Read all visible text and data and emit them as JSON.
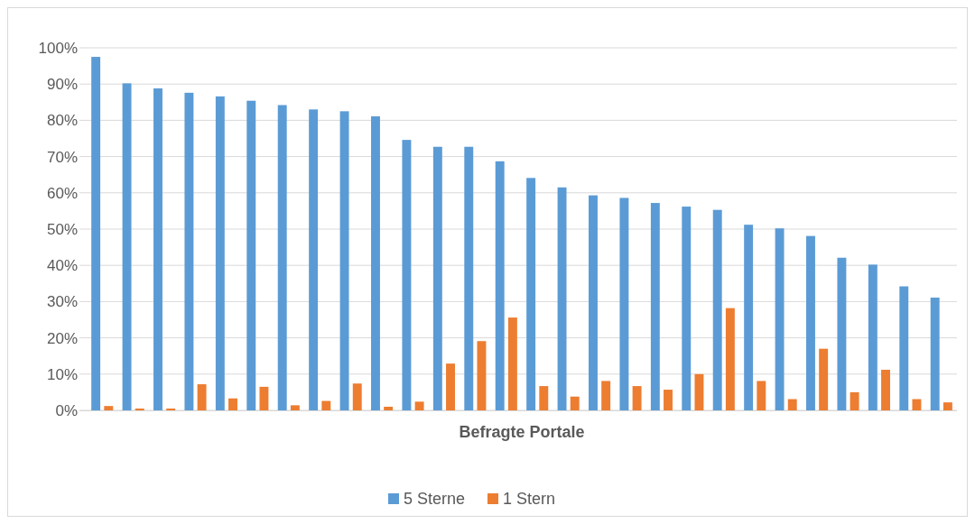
{
  "chart_data": {
    "type": "bar",
    "xlabel": "Befragte Portale",
    "categories": [
      null,
      null,
      null,
      null,
      null,
      null,
      null,
      null,
      null,
      null,
      null,
      null,
      null,
      null,
      null,
      null,
      null,
      null,
      null,
      null,
      null,
      null,
      null,
      null,
      null,
      null,
      null,
      null
    ],
    "series": [
      {
        "name": "5 Sterne",
        "color": "#5b9bd5",
        "values": [
          97.5,
          90.2,
          88.8,
          87.6,
          86.6,
          85.4,
          84.2,
          83,
          82.5,
          81.1,
          74.6,
          72.7,
          72.7,
          68.7,
          64.1,
          61.5,
          59.3,
          58.6,
          57.2,
          56.2,
          55.3,
          51.2,
          50.2,
          48.1,
          42.1,
          40.2,
          34.2,
          31.1
        ]
      },
      {
        "name": "1 Stern",
        "color": "#ed7d31",
        "values": [
          1.2,
          0.5,
          0.5,
          7.2,
          3.3,
          6.5,
          1.4,
          2.6,
          7.4,
          1,
          2.4,
          12.9,
          19.1,
          25.6,
          6.7,
          3.8,
          8.1,
          6.7,
          5.7,
          10,
          28.2,
          8.1,
          3.1,
          17,
          5,
          11.2,
          3.1,
          2.2
        ]
      }
    ],
    "ylim": [
      0,
      100
    ],
    "yticks": [
      {
        "value": 0,
        "label": "0%"
      },
      {
        "value": 10,
        "label": "10%"
      },
      {
        "value": 20,
        "label": "20%"
      },
      {
        "value": 30,
        "label": "30%"
      },
      {
        "value": 40,
        "label": "40%"
      },
      {
        "value": 50,
        "label": "50%"
      },
      {
        "value": 60,
        "label": "60%"
      },
      {
        "value": 70,
        "label": "70%"
      },
      {
        "value": 80,
        "label": "80%"
      },
      {
        "value": 90,
        "label": "90%"
      },
      {
        "value": 100,
        "label": "100%"
      }
    ],
    "grid": "y",
    "legend": "bottom"
  }
}
